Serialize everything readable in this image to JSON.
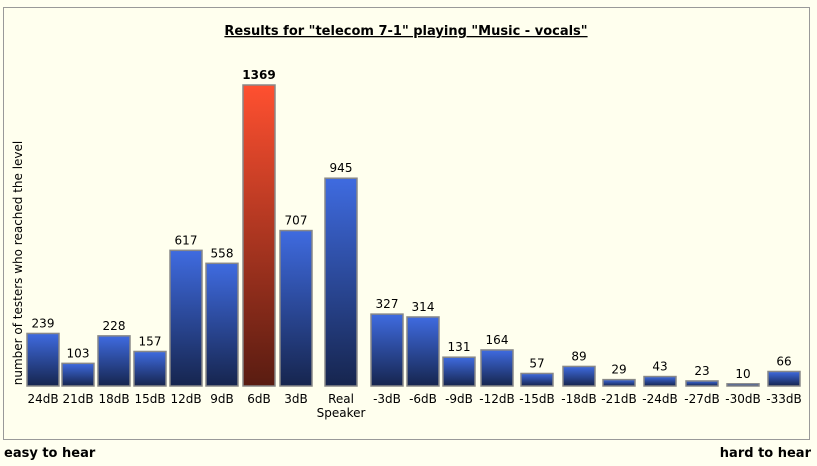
{
  "chart_data": {
    "type": "bar",
    "title": "Results for \"telecom 7-1\" playing \"Music - vocals\"",
    "y_label": "number of testers who reached the level",
    "categories": [
      "24dB",
      "21dB",
      "18dB",
      "15dB",
      "12dB",
      "9dB",
      "6dB",
      "3dB",
      "Real Speaker",
      "-3dB",
      "-6dB",
      "-9dB",
      "-12dB",
      "-15dB",
      "-18dB",
      "-21dB",
      "-24dB",
      "-27dB",
      "-30dB",
      "-33dB"
    ],
    "values": [
      239,
      103,
      228,
      157,
      617,
      558,
      1369,
      707,
      945,
      327,
      314,
      131,
      164,
      57,
      89,
      29,
      43,
      23,
      10,
      66
    ],
    "colors": [
      "#3f6be0",
      "#3f6be0",
      "#3f6be0",
      "#3f6be0",
      "#3f6be0",
      "#3f6be0",
      "#ff5030",
      "#3f6be0",
      "#3f6be0",
      "#3f6be0",
      "#3f6be0",
      "#3f6be0",
      "#3f6be0",
      "#3f6be0",
      "#3f6be0",
      "#3f6be0",
      "#3f6be0",
      "#3f6be0",
      "#3f6be0",
      "#3f6be0"
    ],
    "left_note": "easy to hear",
    "right_note": "hard to hear"
  }
}
